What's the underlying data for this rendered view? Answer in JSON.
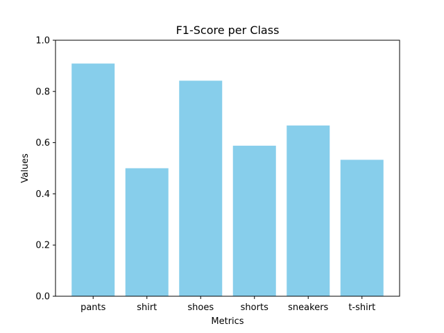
{
  "chart_data": {
    "type": "bar",
    "title": "F1-Score per Class",
    "xlabel": "Metrics",
    "ylabel": "Values",
    "categories": [
      "pants",
      "shirt",
      "shoes",
      "shorts",
      "sneakers",
      "t-shirt"
    ],
    "values": [
      0.909,
      0.5,
      0.842,
      0.588,
      0.667,
      0.533
    ],
    "ylim": [
      0,
      1.0
    ],
    "yticks": [
      0.0,
      0.2,
      0.4,
      0.6,
      0.8,
      1.0
    ],
    "ytick_labels": [
      "0.0",
      "0.2",
      "0.4",
      "0.6",
      "0.8",
      "1.0"
    ],
    "bar_color": "#87ceeb",
    "grid": false,
    "legend": false
  }
}
